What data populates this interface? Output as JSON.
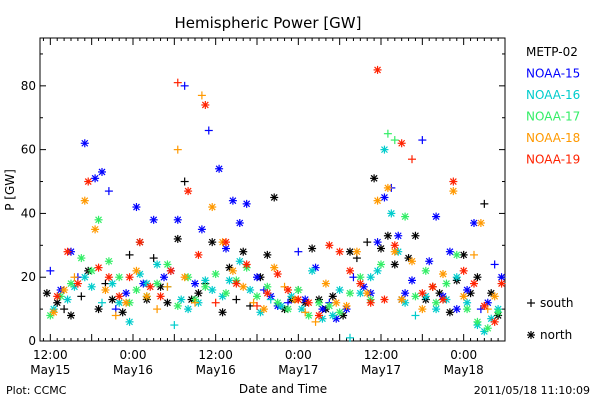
{
  "chart_data": {
    "type": "scatter",
    "title": "Hemispheric Power [GW]",
    "ylabel": "P [GW]",
    "xlabel": "Date and Time",
    "ylim": [
      0,
      95
    ],
    "xlim": [
      -1.5,
      66
    ],
    "yticks": [
      0,
      20,
      40,
      60,
      80
    ],
    "xticks": [
      {
        "x": 0,
        "label1": "12:00",
        "label2": "May15"
      },
      {
        "x": 12,
        "label1": "0:00",
        "label2": "May16"
      },
      {
        "x": 24,
        "label1": "12:00",
        "label2": "May16"
      },
      {
        "x": 36,
        "label1": "0:00",
        "label2": "May17"
      },
      {
        "x": 48,
        "label1": "12:00",
        "label2": "May17"
      },
      {
        "x": 60,
        "label1": "0:00",
        "label2": "May18"
      }
    ],
    "grid": false,
    "legend": {
      "placement": "right",
      "entries": [
        {
          "name": "METP-02",
          "color": "#000000"
        },
        {
          "name": "NOAA-15",
          "color": "#0000ff"
        },
        {
          "name": "NOAA-16",
          "color": "#00cccc"
        },
        {
          "name": "NOAA-17",
          "color": "#33ee66"
        },
        {
          "name": "NOAA-18",
          "color": "#ff9900"
        },
        {
          "name": "NOAA-19",
          "color": "#ff2200"
        }
      ],
      "markers": [
        {
          "symbol": "+",
          "label": "south"
        },
        {
          "symbol": "*",
          "label": "north"
        }
      ]
    },
    "series": [
      {
        "name": "METP-02",
        "color": "#000000",
        "x": [
          -0.5,
          1,
          2,
          3,
          4.5,
          5.5,
          7,
          8,
          9,
          10.5,
          11.5,
          13,
          14,
          15,
          16,
          17,
          18.5,
          19.5,
          20.5,
          21.5,
          22.5,
          23.5,
          25,
          26,
          27,
          28,
          29,
          30.5,
          31.5,
          32.5,
          34,
          35,
          36,
          37,
          38,
          39,
          40,
          41,
          42.5,
          43.5,
          44.5,
          46,
          47,
          48,
          49,
          50,
          51,
          52,
          53,
          54.5,
          55.5,
          56.5,
          58,
          59,
          60,
          61,
          62,
          63,
          64,
          65
        ],
        "y": [
          15,
          12,
          10,
          8,
          14,
          22,
          10,
          18,
          13,
          9,
          27,
          31,
          13,
          26,
          17,
          12,
          32,
          50,
          13,
          15,
          18,
          31,
          9,
          23,
          13,
          28,
          11,
          20,
          27,
          45,
          10,
          13,
          16,
          12,
          29,
          13,
          10,
          14,
          8,
          28,
          26,
          31,
          51,
          29,
          33,
          24,
          13,
          26,
          33,
          13,
          17,
          15,
          9,
          19,
          27,
          15,
          20,
          43,
          15,
          8
        ],
        "marker": [
          "*",
          "*",
          "+",
          "*",
          "+",
          "*",
          "*",
          "+",
          "*",
          "*",
          "+",
          "*",
          "*",
          "+",
          "*",
          "*",
          "*",
          "+",
          "*",
          "*",
          "+",
          "*",
          "*",
          "*",
          "+",
          "*",
          "+",
          "*",
          "*",
          "*",
          "*",
          "*",
          "+",
          "*",
          "*",
          "*",
          "*",
          "*",
          "*",
          "*",
          "+",
          "+",
          "*",
          "*",
          "*",
          "*",
          "*",
          "*",
          "*",
          "*",
          "*",
          "*",
          "*",
          "*",
          "*",
          "*",
          "*",
          "+",
          "*",
          "*"
        ]
      },
      {
        "name": "NOAA-15",
        "color": "#0000ff",
        "x": [
          0,
          1.5,
          3,
          4,
          5,
          6.5,
          7.5,
          8.5,
          9.5,
          11,
          12.5,
          13.5,
          15,
          16.5,
          17.5,
          18.5,
          19.5,
          21,
          22,
          23,
          24.5,
          25.5,
          26.5,
          27.5,
          28.5,
          30,
          31,
          32,
          33,
          34.5,
          36,
          37,
          38.5,
          39.5,
          40.5,
          41.5,
          43,
          44,
          45.5,
          46.5,
          47.5,
          48.5,
          49.5,
          50.5,
          51.5,
          52.5,
          54,
          55,
          56,
          57,
          58,
          59,
          60.5,
          61.5,
          62.5,
          63.5,
          64.5,
          65.5
        ],
        "y": [
          22,
          16,
          28,
          20,
          62,
          51,
          53,
          47,
          10,
          15,
          42,
          18,
          38,
          20,
          22,
          38,
          80,
          18,
          35,
          66,
          54,
          29,
          44,
          37,
          43,
          20,
          16,
          14,
          11,
          12,
          28,
          13,
          23,
          10,
          12,
          7,
          10,
          20,
          17,
          15,
          31,
          45,
          48,
          33,
          15,
          19,
          63,
          25,
          39,
          14,
          28,
          10,
          16,
          37,
          10,
          12,
          24,
          20
        ],
        "marker": [
          "+",
          "*",
          "*",
          "+",
          "*",
          "*",
          "*",
          "+",
          "+",
          "*",
          "*",
          "*",
          "*",
          "*",
          "*",
          "*",
          "+",
          "*",
          "*",
          "+",
          "*",
          "*",
          "*",
          "*",
          "*",
          "*",
          "+",
          "*",
          "*",
          "+",
          "+",
          "*",
          "*",
          "*",
          "+",
          "*",
          "*",
          "+",
          "*",
          "*",
          "*",
          "*",
          "+",
          "*",
          "*",
          "*",
          "+",
          "*",
          "*",
          "*",
          "*",
          "*",
          "*",
          "*",
          "+",
          "*",
          "+",
          "*"
        ]
      },
      {
        "name": "NOAA-16",
        "color": "#00cccc",
        "x": [
          0.5,
          2.5,
          3.5,
          5,
          6,
          7.5,
          9,
          10,
          11.5,
          13,
          14,
          15.5,
          17,
          18,
          19,
          20,
          21.5,
          22.5,
          23.5,
          25,
          26,
          27.5,
          29,
          30.5,
          32,
          33.5,
          35,
          36.5,
          38,
          39.5,
          41,
          42,
          43.5,
          45,
          46.5,
          47.5,
          48.5,
          49.5,
          50.5,
          51.5,
          53,
          54.5,
          56,
          57.5,
          59,
          60.5,
          62,
          63,
          64,
          65
        ],
        "y": [
          10,
          13,
          17,
          20,
          17,
          12,
          18,
          12,
          6,
          21,
          18,
          24,
          17,
          5,
          13,
          10,
          12,
          19,
          16,
          14,
          19,
          25,
          16,
          9,
          13,
          11,
          14,
          10,
          22,
          7,
          8,
          16,
          1,
          15,
          20,
          22,
          60,
          40,
          28,
          12,
          8,
          14,
          10,
          13,
          20,
          12,
          5,
          3,
          7,
          10
        ],
        "marker": [
          "*",
          "*",
          "*",
          "*",
          "*",
          "+",
          "*",
          "*",
          "*",
          "*",
          "*",
          "*",
          "+",
          "+",
          "*",
          "*",
          "*",
          "*",
          "*",
          "*",
          "*",
          "*",
          "*",
          "*",
          "+",
          "*",
          "*",
          "*",
          "*",
          "*",
          "*",
          "*",
          "+",
          "*",
          "*",
          "*",
          "*",
          "*",
          "*",
          "*",
          "+",
          "*",
          "*",
          "*",
          "*",
          "*",
          "*",
          "*",
          "*",
          "*"
        ]
      },
      {
        "name": "NOAA-17",
        "color": "#33ee66",
        "x": [
          0,
          1.5,
          3,
          4.5,
          6,
          7,
          8.5,
          10,
          11.5,
          12.5,
          14,
          15.5,
          17,
          18.5,
          20,
          21,
          22.5,
          24,
          25.5,
          27,
          28.5,
          30,
          31.5,
          33,
          34.5,
          36,
          37.5,
          39,
          40.5,
          42,
          43.5,
          45,
          46.5,
          48,
          49,
          50,
          51.5,
          53,
          54.5,
          56,
          57.5,
          59,
          60.5,
          62,
          63.5,
          65
        ],
        "y": [
          8,
          14,
          18,
          26,
          22,
          38,
          25,
          20,
          12,
          16,
          14,
          18,
          24,
          11,
          20,
          13,
          17,
          21,
          15,
          19,
          23,
          14,
          17,
          12,
          10,
          16,
          8,
          12,
          11,
          9,
          15,
          20,
          13,
          24,
          65,
          63,
          39,
          14,
          22,
          12,
          18,
          27,
          10,
          6,
          4,
          9
        ],
        "marker": [
          "*",
          "*",
          "*",
          "*",
          "*",
          "*",
          "*",
          "*",
          "*",
          "*",
          "*",
          "*",
          "*",
          "*",
          "*",
          "*",
          "*",
          "*",
          "*",
          "*",
          "*",
          "*",
          "*",
          "*",
          "*",
          "*",
          "*",
          "*",
          "*",
          "*",
          "*",
          "*",
          "*",
          "*",
          "+",
          "+",
          "*",
          "*",
          "*",
          "*",
          "*",
          "*",
          "*",
          "*",
          "*",
          "*"
        ]
      },
      {
        "name": "NOAA-18",
        "color": "#ff9900",
        "x": [
          0.5,
          2,
          3.5,
          5,
          6.5,
          8,
          9.5,
          11,
          12.5,
          14,
          15.5,
          17,
          18.5,
          19.5,
          21,
          22,
          23.5,
          25,
          26.5,
          28,
          29.5,
          31,
          32.5,
          34,
          35.5,
          37,
          38.5,
          40,
          41.5,
          43,
          44.5,
          46,
          47.5,
          49,
          50,
          51,
          52.5,
          54,
          55.5,
          57,
          58.5,
          60,
          61.5,
          62.5,
          63.5,
          64.5
        ],
        "y": [
          9,
          16,
          20,
          44,
          35,
          16,
          8,
          12,
          22,
          14,
          10,
          17,
          60,
          20,
          12,
          77,
          42,
          31,
          22,
          17,
          12,
          10,
          23,
          17,
          13,
          9,
          6,
          18,
          12,
          11,
          28,
          15,
          44,
          48,
          28,
          13,
          25,
          10,
          17,
          21,
          47,
          14,
          27,
          37,
          10,
          14
        ],
        "marker": [
          "*",
          "*",
          "+",
          "*",
          "*",
          "*",
          "+",
          "*",
          "*",
          "*",
          "+",
          "+",
          "+",
          "*",
          "+",
          "+",
          "*",
          "*",
          "*",
          "*",
          "+",
          "*",
          "*",
          "+",
          "*",
          "+",
          "+",
          "*",
          "*",
          "*",
          "*",
          "*",
          "*",
          "*",
          "*",
          "*",
          "*",
          "*",
          "*",
          "*",
          "*",
          "*",
          "+",
          "*",
          "+",
          "*"
        ]
      },
      {
        "name": "NOAA-19",
        "color": "#ff2200",
        "x": [
          1,
          2.5,
          4,
          5.5,
          7,
          8.5,
          10,
          11.5,
          13,
          14.5,
          16,
          17.5,
          18.5,
          20,
          21.5,
          22.5,
          24,
          25.5,
          27,
          28.5,
          30,
          31.5,
          33,
          34.5,
          36,
          37.5,
          39,
          40.5,
          42,
          43.5,
          45,
          46.5,
          47.5,
          48.5,
          50,
          51,
          52.5,
          54,
          55.5,
          57,
          58.5,
          60,
          61.5,
          63,
          64.5,
          65.5
        ],
        "y": [
          14,
          28,
          18,
          50,
          23,
          20,
          14,
          20,
          31,
          17,
          14,
          22,
          81,
          47,
          27,
          74,
          12,
          31,
          18,
          24,
          11,
          15,
          21,
          16,
          13,
          12,
          8,
          30,
          28,
          22,
          18,
          12,
          85,
          13,
          30,
          62,
          57,
          15,
          17,
          13,
          50,
          22,
          18,
          11,
          6,
          18
        ],
        "marker": [
          "*",
          "*",
          "*",
          "*",
          "*",
          "*",
          "*",
          "*",
          "*",
          "*",
          "*",
          "*",
          "+",
          "*",
          "*",
          "*",
          "+",
          "*",
          "*",
          "*",
          "+",
          "*",
          "*",
          "*",
          "*",
          "*",
          "*",
          "*",
          "*",
          "*",
          "*",
          "*",
          "*",
          "*",
          "*",
          "*",
          "+",
          "*",
          "*",
          "*",
          "*",
          "*",
          "*",
          "*",
          "*",
          "*"
        ]
      }
    ]
  },
  "footer": {
    "left": "Plot: CCMC",
    "right": "2011/05/18 11:10:09"
  }
}
